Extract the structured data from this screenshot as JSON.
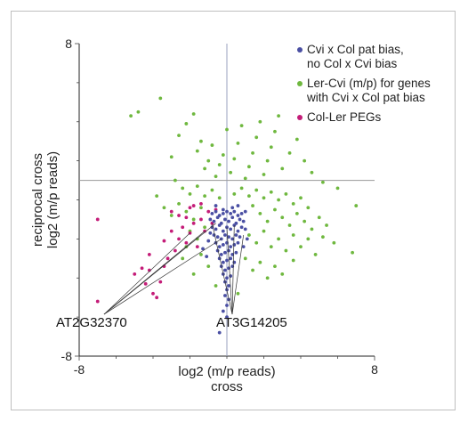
{
  "chart_data": {
    "type": "scatter",
    "xlabel_lines": [
      "log2 (m/p reads)",
      "cross"
    ],
    "ylabel_lines": [
      "reciprocal cross",
      "log2 (m/p reads)"
    ],
    "xlim": [
      -8,
      8
    ],
    "ylim": [
      -8,
      8
    ],
    "x_tick_labels": [
      "-8",
      "8"
    ],
    "y_tick_labels": [
      "8",
      "-8"
    ],
    "reference_lines": {
      "vertical_x": 0,
      "horizontal_y": 1
    },
    "legend_placement": "top-right",
    "series": [
      {
        "name_lines": [
          "Cvi x Col pat bias,",
          "no Col x Cvi bias"
        ],
        "color": "#4a4fa3",
        "points": [
          [
            -0.8,
            -0.7
          ],
          [
            -0.6,
            -0.6
          ],
          [
            -0.4,
            -0.8
          ],
          [
            -0.2,
            -0.7
          ],
          [
            0.0,
            -0.6
          ],
          [
            0.2,
            -0.7
          ],
          [
            0.4,
            -0.6
          ],
          [
            0.6,
            -0.8
          ],
          [
            0.8,
            -0.7
          ],
          [
            1.0,
            -0.6
          ],
          [
            -0.9,
            -1.0
          ],
          [
            -0.7,
            -1.1
          ],
          [
            -0.5,
            -0.9
          ],
          [
            -0.3,
            -1.2
          ],
          [
            -0.1,
            -1.0
          ],
          [
            0.1,
            -1.1
          ],
          [
            0.3,
            -0.9
          ],
          [
            0.5,
            -1.2
          ],
          [
            0.7,
            -1.0
          ],
          [
            0.9,
            -1.1
          ],
          [
            -0.8,
            -1.4
          ],
          [
            -0.6,
            -1.5
          ],
          [
            -0.4,
            -1.3
          ],
          [
            -0.2,
            -1.6
          ],
          [
            0.0,
            -1.4
          ],
          [
            0.2,
            -1.5
          ],
          [
            0.4,
            -1.3
          ],
          [
            0.6,
            -1.6
          ],
          [
            0.8,
            -1.4
          ],
          [
            -0.7,
            -1.8
          ],
          [
            -0.5,
            -1.9
          ],
          [
            -0.3,
            -2.0
          ],
          [
            -0.1,
            -1.8
          ],
          [
            0.1,
            -1.9
          ],
          [
            0.3,
            -2.0
          ],
          [
            0.5,
            -1.8
          ],
          [
            0.7,
            -1.9
          ],
          [
            -0.6,
            -2.2
          ],
          [
            -0.4,
            -2.4
          ],
          [
            -0.2,
            -2.3
          ],
          [
            0.0,
            -2.2
          ],
          [
            0.2,
            -2.4
          ],
          [
            0.4,
            -2.3
          ],
          [
            0.6,
            -2.2
          ],
          [
            -0.5,
            -2.6
          ],
          [
            -0.3,
            -2.8
          ],
          [
            -0.1,
            -2.7
          ],
          [
            0.1,
            -2.6
          ],
          [
            0.3,
            -2.8
          ],
          [
            0.5,
            -2.7
          ],
          [
            -0.4,
            -3.0
          ],
          [
            -0.2,
            -3.2
          ],
          [
            0.0,
            -3.1
          ],
          [
            0.2,
            -3.0
          ],
          [
            0.4,
            -3.2
          ],
          [
            -0.3,
            -3.4
          ],
          [
            -0.1,
            -3.6
          ],
          [
            0.1,
            -3.5
          ],
          [
            0.3,
            -3.4
          ],
          [
            -0.2,
            -3.8
          ],
          [
            0.0,
            -4.0
          ],
          [
            0.2,
            -3.9
          ],
          [
            -0.1,
            -4.2
          ],
          [
            0.1,
            -4.4
          ],
          [
            0.0,
            -4.6
          ],
          [
            -0.1,
            -4.9
          ],
          [
            0.1,
            -5.1
          ],
          [
            0.0,
            -5.4
          ],
          [
            -0.2,
            -5.7
          ],
          [
            0.0,
            -6.0
          ],
          [
            -0.4,
            -6.8
          ],
          [
            -1.0,
            -2.1
          ],
          [
            -1.3,
            -2.5
          ],
          [
            -1.1,
            -2.9
          ],
          [
            0.9,
            -2.4
          ],
          [
            1.1,
            -2.0
          ],
          [
            -0.9,
            -1.7
          ],
          [
            1.0,
            -1.5
          ],
          [
            -0.2,
            -0.5
          ],
          [
            0.3,
            -0.4
          ],
          [
            -0.6,
            -0.3
          ],
          [
            0.6,
            -0.3
          ]
        ]
      },
      {
        "name_lines": [
          "Ler-Cvi (m/p) for genes",
          "with Cvi x Col pat bias"
        ],
        "color": "#6fb83f",
        "points": [
          [
            -5.2,
            4.3
          ],
          [
            -4.8,
            4.5
          ],
          [
            -3.6,
            5.2
          ],
          [
            -3.0,
            2.2
          ],
          [
            -2.6,
            3.3
          ],
          [
            -2.2,
            3.9
          ],
          [
            -1.8,
            4.4
          ],
          [
            -1.6,
            2.5
          ],
          [
            -1.4,
            3.0
          ],
          [
            -1.2,
            1.6
          ],
          [
            -1.0,
            2.0
          ],
          [
            -0.8,
            2.8
          ],
          [
            -0.6,
            1.2
          ],
          [
            -0.4,
            1.8
          ],
          [
            -0.2,
            2.3
          ],
          [
            0.0,
            3.6
          ],
          [
            0.2,
            1.4
          ],
          [
            0.4,
            2.1
          ],
          [
            0.6,
            2.9
          ],
          [
            0.8,
            3.8
          ],
          [
            1.0,
            1.1
          ],
          [
            1.2,
            1.7
          ],
          [
            1.4,
            2.4
          ],
          [
            1.6,
            3.2
          ],
          [
            1.8,
            4.0
          ],
          [
            2.0,
            1.3
          ],
          [
            2.2,
            2.0
          ],
          [
            2.4,
            2.7
          ],
          [
            2.6,
            3.5
          ],
          [
            2.8,
            4.3
          ],
          [
            3.0,
            1.6
          ],
          [
            3.4,
            2.4
          ],
          [
            3.8,
            3.1
          ],
          [
            4.2,
            2.0
          ],
          [
            4.6,
            1.4
          ],
          [
            5.2,
            0.9
          ],
          [
            6.0,
            0.6
          ],
          [
            -2.8,
            1.0
          ],
          [
            -2.4,
            0.6
          ],
          [
            -2.0,
            0.3
          ],
          [
            -1.6,
            0.7
          ],
          [
            -1.2,
            0.2
          ],
          [
            -0.8,
            0.5
          ],
          [
            -0.4,
            0.1
          ],
          [
            0.4,
            0.3
          ],
          [
            0.8,
            0.6
          ],
          [
            1.2,
            0.2
          ],
          [
            1.6,
            0.5
          ],
          [
            2.0,
            0.1
          ],
          [
            2.4,
            0.4
          ],
          [
            2.8,
            0.0
          ],
          [
            3.2,
            0.3
          ],
          [
            3.6,
            -0.2
          ],
          [
            4.0,
            0.1
          ],
          [
            4.4,
            -0.4
          ],
          [
            -3.4,
            -0.4
          ],
          [
            -3.0,
            -0.8
          ],
          [
            -2.6,
            -0.2
          ],
          [
            -2.2,
            -0.6
          ],
          [
            -1.8,
            -1.0
          ],
          [
            -1.4,
            -0.4
          ],
          [
            1.4,
            -0.3
          ],
          [
            1.8,
            -0.7
          ],
          [
            2.2,
            -1.1
          ],
          [
            2.6,
            -0.5
          ],
          [
            3.0,
            -0.9
          ],
          [
            3.4,
            -1.3
          ],
          [
            3.8,
            -0.7
          ],
          [
            4.2,
            -1.1
          ],
          [
            4.6,
            -1.5
          ],
          [
            5.0,
            -0.9
          ],
          [
            5.4,
            -1.3
          ],
          [
            -2.0,
            -1.6
          ],
          [
            -1.6,
            -2.0
          ],
          [
            -1.2,
            -1.4
          ],
          [
            1.2,
            -1.8
          ],
          [
            1.6,
            -2.2
          ],
          [
            2.0,
            -1.6
          ],
          [
            2.4,
            -2.4
          ],
          [
            2.8,
            -2.0
          ],
          [
            3.2,
            -2.6
          ],
          [
            3.6,
            -1.8
          ],
          [
            4.0,
            -2.4
          ],
          [
            4.4,
            -2.0
          ],
          [
            4.8,
            -2.8
          ],
          [
            5.2,
            -1.9
          ],
          [
            5.8,
            -2.2
          ],
          [
            6.8,
            -2.7
          ],
          [
            -1.4,
            -2.8
          ],
          [
            -1.0,
            -3.4
          ],
          [
            1.0,
            -3.0
          ],
          [
            1.4,
            -3.6
          ],
          [
            1.8,
            -3.2
          ],
          [
            2.2,
            -4.0
          ],
          [
            2.6,
            -3.4
          ],
          [
            3.0,
            -3.8
          ],
          [
            3.6,
            -3.1
          ],
          [
            -2.4,
            -3.0
          ],
          [
            -1.8,
            -3.8
          ],
          [
            -2.2,
            -2.4
          ],
          [
            -0.6,
            -4.4
          ],
          [
            0.6,
            -4.8
          ],
          [
            7.0,
            -0.3
          ],
          [
            -3.8,
            0.2
          ]
        ]
      },
      {
        "name_lines": [
          "Col-Ler PEGs"
        ],
        "color": "#c41c78",
        "points": [
          [
            -7.0,
            -1.0
          ],
          [
            -7.0,
            -5.2
          ],
          [
            -5.0,
            -3.8
          ],
          [
            -4.6,
            -3.5
          ],
          [
            -4.4,
            -4.3
          ],
          [
            -4.2,
            -3.6
          ],
          [
            -4.0,
            -4.8
          ],
          [
            -3.8,
            -5.0
          ],
          [
            -3.6,
            -4.2
          ],
          [
            -3.4,
            -3.4
          ],
          [
            -3.2,
            -3.0
          ],
          [
            -3.0,
            -1.6
          ],
          [
            -2.8,
            -2.6
          ],
          [
            -2.6,
            -2.0
          ],
          [
            -2.4,
            -1.4
          ],
          [
            -2.2,
            -2.2
          ],
          [
            -2.0,
            -1.7
          ],
          [
            -1.8,
            -1.2
          ],
          [
            -1.6,
            -2.4
          ],
          [
            -1.4,
            -1.0
          ],
          [
            -1.2,
            -1.6
          ],
          [
            -1.0,
            -0.6
          ],
          [
            -0.8,
            -1.2
          ],
          [
            -0.6,
            -0.5
          ],
          [
            -3.4,
            -2.1
          ],
          [
            -2.6,
            -0.8
          ],
          [
            -2.0,
            -0.4
          ],
          [
            -1.4,
            -0.2
          ],
          [
            -4.2,
            -2.8
          ],
          [
            -3.0,
            -0.6
          ],
          [
            -2.2,
            -0.9
          ],
          [
            -1.8,
            -0.3
          ]
        ]
      }
    ],
    "annotations": [
      {
        "text": "AT2G32370",
        "targets": [
          [
            -2.0,
            -1.7
          ],
          [
            -1.2,
            -1.6
          ],
          [
            -0.6,
            -1.2
          ],
          [
            -0.3,
            -2.0
          ]
        ]
      },
      {
        "text": "AT3G14205",
        "targets": [
          [
            -0.8,
            -1.2
          ],
          [
            0.0,
            -1.4
          ],
          [
            0.4,
            -1.3
          ],
          [
            0.9,
            -1.8
          ]
        ]
      }
    ]
  }
}
